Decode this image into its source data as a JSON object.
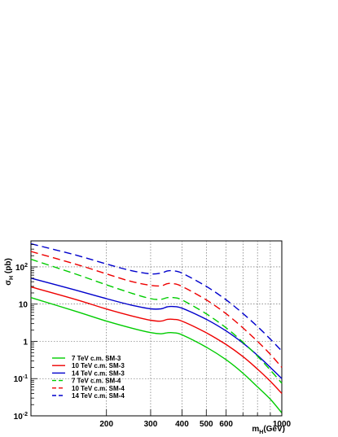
{
  "chart_data": {
    "type": "line",
    "xlabel": "m_H(GeV)",
    "xlabel_main": "m",
    "xlabel_sub": "H",
    "xlabel_rest": "(GeV)",
    "ylabel": "σ_H (pb)",
    "ylabel_main": "σ",
    "ylabel_sub": "H",
    "ylabel_rest": " (pb)",
    "x_scale": "log",
    "y_scale": "log",
    "xlim": [
      100,
      1000
    ],
    "ylim": [
      0.01,
      500
    ],
    "grid": true,
    "legend_position": "bottom-left",
    "x_ticks": [
      {
        "value": 200,
        "label": "200"
      },
      {
        "value": 300,
        "label": "300"
      },
      {
        "value": 400,
        "label": "400"
      },
      {
        "value": 500,
        "label": "500"
      },
      {
        "value": 600,
        "label": "600"
      },
      {
        "value": 1000,
        "label": "1000"
      }
    ],
    "x_grid": [
      200,
      300,
      400,
      500,
      600,
      700,
      800,
      900
    ],
    "y_ticks": [
      {
        "value": 0.01,
        "base": "10",
        "exp": "-2"
      },
      {
        "value": 0.1,
        "base": "10",
        "exp": "-1"
      },
      {
        "value": 1,
        "base": "1",
        "exp": ""
      },
      {
        "value": 10,
        "base": "10",
        "exp": ""
      },
      {
        "value": 100,
        "base": "10",
        "exp": "2"
      }
    ],
    "x": [
      100,
      150,
      200,
      250,
      300,
      330,
      350,
      370,
      400,
      500,
      600,
      700,
      800,
      900,
      1000
    ],
    "series": [
      {
        "name": "7 TeV c.m. SM-3",
        "color": "#00cc00",
        "dash": "solid",
        "values": [
          15,
          6.5,
          3.5,
          2.3,
          1.72,
          1.6,
          1.7,
          1.7,
          1.5,
          0.7,
          0.32,
          0.14,
          0.06,
          0.028,
          0.012
        ]
      },
      {
        "name": "10 TeV c.m. SM-3",
        "color": "#ee0000",
        "dash": "solid",
        "values": [
          29,
          13.5,
          7.4,
          4.9,
          3.7,
          3.5,
          3.9,
          3.9,
          3.5,
          1.7,
          0.82,
          0.39,
          0.18,
          0.085,
          0.04
        ]
      },
      {
        "name": "14 TeV c.m. SM-3",
        "color": "#0000cc",
        "dash": "solid",
        "values": [
          50,
          24,
          14,
          9.5,
          7.5,
          7.5,
          8.5,
          8.6,
          7.8,
          3.9,
          1.9,
          0.9,
          0.42,
          0.2,
          0.1
        ]
      },
      {
        "name": "7 TeV c.m. SM-4",
        "color": "#00cc00",
        "dash": "dash",
        "values": [
          160,
          65,
          33,
          20,
          14,
          13.5,
          15,
          15,
          13,
          5.5,
          2.3,
          0.95,
          0.4,
          0.17,
          0.075
        ]
      },
      {
        "name": "10 TeV c.m. SM-4",
        "color": "#ee0000",
        "dash": "dash",
        "values": [
          260,
          120,
          65,
          41,
          32,
          31,
          35.5,
          35.5,
          30,
          13,
          5.5,
          2.3,
          1.0,
          0.45,
          0.2
        ]
      },
      {
        "name": "14 TeV c.m. SM-4",
        "color": "#0000cc",
        "dash": "dash",
        "values": [
          420,
          210,
          120,
          80,
          65,
          68,
          78,
          78,
          68,
          30,
          13,
          5.6,
          2.5,
          1.15,
          0.55
        ]
      }
    ]
  }
}
